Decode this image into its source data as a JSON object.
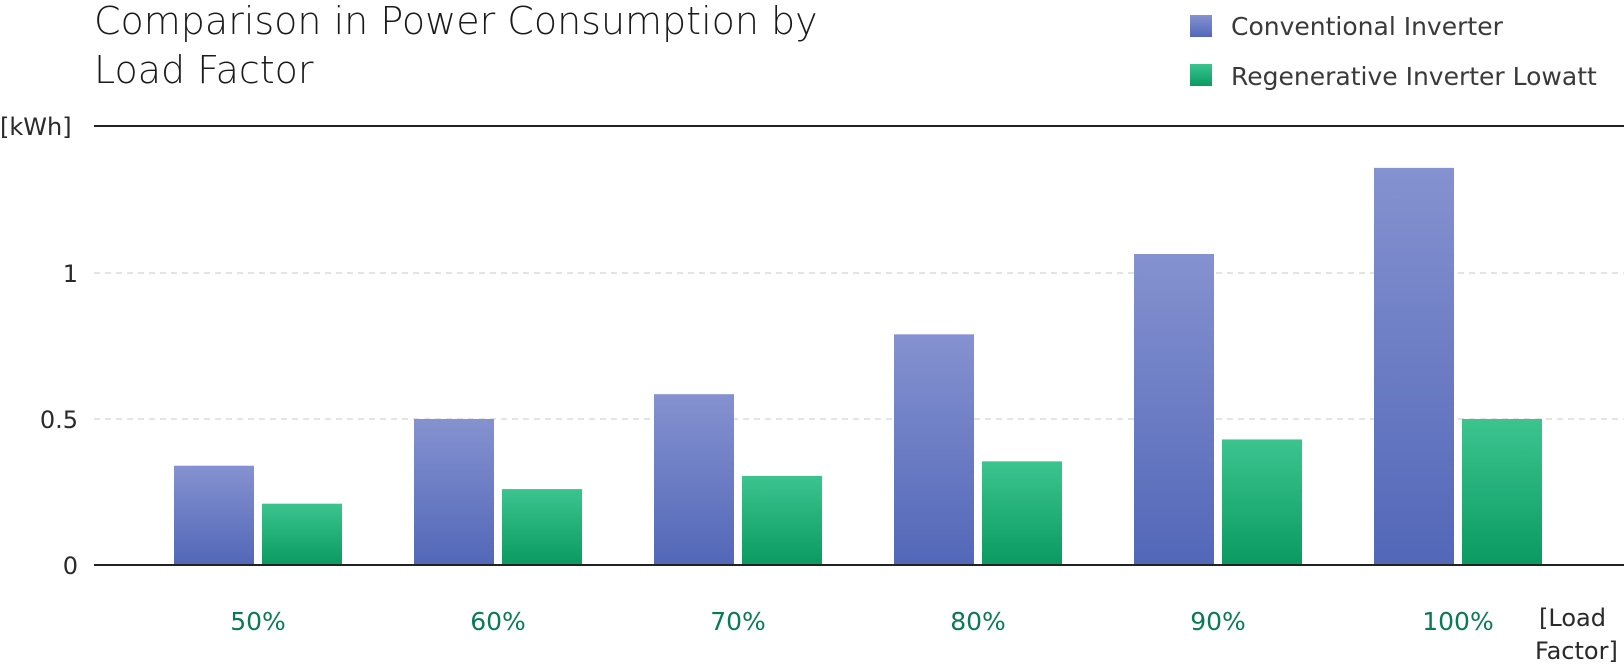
{
  "chart_data": {
    "type": "bar",
    "title_lines": [
      "Comparison in Power Consumption by",
      "Load Factor"
    ],
    "ylabel": "[kWh]",
    "xlabel_lines": [
      "[Load",
      "Factor]"
    ],
    "categories": [
      "50%",
      "60%",
      "70%",
      "80%",
      "90%",
      "100%"
    ],
    "ylim": [
      0,
      1.5
    ],
    "yticks": [
      {
        "value": 0,
        "label": "0"
      },
      {
        "value": 0.5,
        "label": "0.5"
      },
      {
        "value": 1,
        "label": "1"
      }
    ],
    "grid": true,
    "legend_position": "top-right",
    "series": [
      {
        "name": "Conventional Inverter",
        "color": "#6b7fc8",
        "values": [
          0.34,
          0.5,
          0.585,
          0.79,
          1.065,
          1.36
        ]
      },
      {
        "name": "Regenerative Inverter Lowatt",
        "color": "#1fb37a",
        "values": [
          0.21,
          0.26,
          0.305,
          0.355,
          0.43,
          0.5
        ]
      }
    ]
  }
}
